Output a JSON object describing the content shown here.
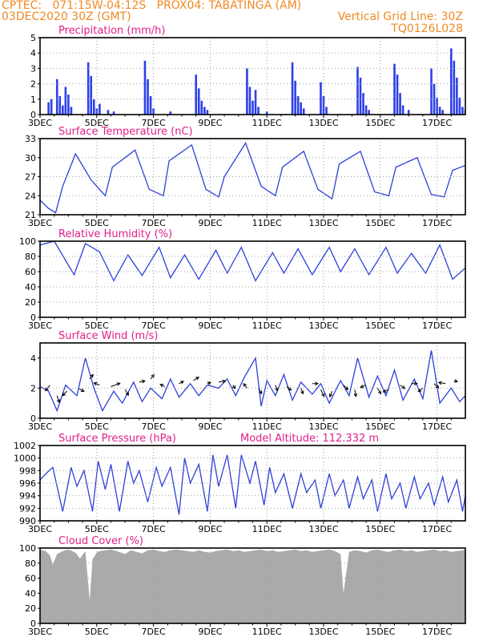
{
  "header": {
    "line1": "CPTEC:   071:15W-04:12S   PROX04: TABATINGA (AM)",
    "line2": "03DEC2020 30Z (GMT)",
    "vertical_grid": "Vertical Grid Line: 30Z",
    "code": "TQ0126L028"
  },
  "colors": {
    "header_text": "#f08a24",
    "panel_title": "#e0208a",
    "series_line": "#2c40d8",
    "precip_bar": "#2c40e8",
    "cloud_fill": "#aaaaaa",
    "grid": "#a0a0a0"
  },
  "x_tick_labels": [
    "3DEC",
    "5DEC",
    "7DEC",
    "9DEC",
    "11DEC",
    "13DEC",
    "15DEC",
    "17DEC"
  ],
  "chart_data": [
    {
      "type": "bar",
      "title": "Precipitation (mm/h)",
      "ylim": [
        0,
        5
      ],
      "yticks": [
        0,
        1,
        2,
        3,
        4,
        5
      ],
      "x_unit": "day of Dec 2020 (label days at 3,5,...,17)",
      "bars": [
        [
          3.3,
          0.8
        ],
        [
          3.4,
          1.0
        ],
        [
          3.6,
          2.3
        ],
        [
          3.7,
          1.2
        ],
        [
          3.8,
          0.6
        ],
        [
          3.9,
          1.8
        ],
        [
          4.0,
          1.3
        ],
        [
          4.1,
          0.5
        ],
        [
          4.7,
          3.4
        ],
        [
          4.8,
          2.5
        ],
        [
          4.9,
          1.0
        ],
        [
          5.0,
          0.4
        ],
        [
          5.1,
          0.7
        ],
        [
          5.4,
          0.3
        ],
        [
          5.6,
          0.2
        ],
        [
          6.7,
          3.5
        ],
        [
          6.8,
          2.3
        ],
        [
          6.9,
          1.2
        ],
        [
          7.0,
          0.4
        ],
        [
          7.6,
          0.2
        ],
        [
          8.5,
          2.6
        ],
        [
          8.6,
          1.7
        ],
        [
          8.7,
          0.9
        ],
        [
          8.8,
          0.5
        ],
        [
          8.9,
          0.3
        ],
        [
          10.3,
          3.0
        ],
        [
          10.4,
          1.8
        ],
        [
          10.5,
          0.9
        ],
        [
          10.6,
          1.6
        ],
        [
          10.7,
          0.5
        ],
        [
          11.0,
          0.2
        ],
        [
          11.9,
          3.4
        ],
        [
          12.0,
          2.2
        ],
        [
          12.1,
          1.2
        ],
        [
          12.2,
          0.8
        ],
        [
          12.3,
          0.4
        ],
        [
          12.9,
          2.1
        ],
        [
          13.0,
          1.2
        ],
        [
          13.1,
          0.5
        ],
        [
          14.2,
          3.1
        ],
        [
          14.3,
          2.4
        ],
        [
          14.4,
          1.4
        ],
        [
          14.5,
          0.6
        ],
        [
          14.6,
          0.3
        ],
        [
          15.5,
          3.3
        ],
        [
          15.6,
          2.6
        ],
        [
          15.7,
          1.4
        ],
        [
          15.8,
          0.6
        ],
        [
          16.0,
          0.3
        ],
        [
          16.8,
          3.0
        ],
        [
          16.9,
          2.0
        ],
        [
          17.0,
          1.1
        ],
        [
          17.1,
          0.5
        ],
        [
          17.2,
          0.3
        ],
        [
          17.5,
          4.3
        ],
        [
          17.6,
          3.5
        ],
        [
          17.7,
          2.4
        ],
        [
          17.8,
          1.1
        ],
        [
          17.9,
          0.5
        ],
        [
          18.0,
          0.3
        ],
        [
          18.1,
          0.2
        ]
      ]
    },
    {
      "type": "line",
      "title": "Surface Temperature (nC)",
      "ylim": [
        21,
        33
      ],
      "yticks": [
        21,
        24,
        27,
        30,
        33
      ],
      "x": [
        3.0,
        3.3,
        3.55,
        3.8,
        4.25,
        4.8,
        5.3,
        5.55,
        6.35,
        6.85,
        7.35,
        7.55,
        8.35,
        8.85,
        9.3,
        9.5,
        10.25,
        10.8,
        11.3,
        11.55,
        12.3,
        12.8,
        13.3,
        13.55,
        14.3,
        14.8,
        15.3,
        15.55,
        16.3,
        16.8,
        17.25,
        17.55,
        18.0
      ],
      "y": [
        23.3,
        22.0,
        21.3,
        25.5,
        30.6,
        26.5,
        24.0,
        28.5,
        31.2,
        25.0,
        24.0,
        29.5,
        32.0,
        25.0,
        23.8,
        27.0,
        32.3,
        25.5,
        24.0,
        28.5,
        31.0,
        25.0,
        23.5,
        29.0,
        31.0,
        24.6,
        24.0,
        28.5,
        30.0,
        24.2,
        23.8,
        28.0,
        28.8
      ]
    },
    {
      "type": "line",
      "title": "Relative Humidity (%)",
      "ylim": [
        0,
        100
      ],
      "yticks": [
        0,
        20,
        40,
        60,
        80,
        100
      ],
      "x": [
        3.0,
        3.5,
        4.2,
        4.6,
        5.1,
        5.6,
        6.1,
        6.6,
        7.2,
        7.6,
        8.1,
        8.6,
        9.2,
        9.6,
        10.1,
        10.6,
        11.2,
        11.6,
        12.1,
        12.6,
        13.2,
        13.6,
        14.1,
        14.6,
        15.2,
        15.6,
        16.1,
        16.6,
        17.1,
        17.55,
        18.0
      ],
      "y": [
        95,
        100,
        56,
        97,
        86,
        48,
        82,
        55,
        92,
        52,
        82,
        50,
        88,
        58,
        92,
        48,
        85,
        58,
        90,
        56,
        92,
        60,
        90,
        56,
        92,
        58,
        84,
        58,
        95,
        50,
        65
      ]
    },
    {
      "type": "line",
      "title": "Surface Wind (m/s)",
      "ylim": [
        0,
        5
      ],
      "yticks": [
        0,
        2,
        4
      ],
      "x": [
        3.0,
        3.3,
        3.6,
        3.9,
        4.3,
        4.6,
        4.9,
        5.2,
        5.6,
        5.9,
        6.3,
        6.6,
        6.9,
        7.3,
        7.6,
        7.9,
        8.3,
        8.6,
        8.9,
        9.3,
        9.6,
        9.9,
        10.2,
        10.6,
        10.8,
        11.0,
        11.3,
        11.6,
        11.9,
        12.2,
        12.6,
        12.9,
        13.2,
        13.6,
        13.9,
        14.2,
        14.6,
        14.9,
        15.2,
        15.5,
        15.8,
        16.2,
        16.5,
        16.8,
        17.1,
        17.5,
        17.8,
        18.0
      ],
      "y": [
        2.1,
        1.8,
        0.5,
        2.2,
        1.5,
        4.0,
        2.0,
        0.5,
        1.8,
        1.0,
        2.4,
        1.1,
        2.0,
        1.3,
        2.6,
        1.4,
        2.3,
        1.5,
        2.2,
        2.0,
        2.6,
        1.5,
        2.7,
        4.0,
        0.8,
        2.5,
        1.5,
        2.9,
        1.2,
        2.4,
        1.6,
        2.3,
        1.0,
        2.5,
        1.5,
        4.0,
        1.4,
        2.8,
        1.5,
        3.2,
        1.2,
        2.6,
        1.3,
        4.5,
        1.0,
        2.0,
        1.1,
        1.5
      ],
      "arrows": [
        [
          3.35,
          2.2,
          -0.4,
          -0.5
        ],
        [
          3.6,
          1.5,
          0.2,
          -0.6
        ],
        [
          3.95,
          1.8,
          -0.4,
          -0.4
        ],
        [
          4.35,
          2.0,
          0.5,
          -0.3
        ],
        [
          4.75,
          2.6,
          0.3,
          0.4
        ],
        [
          5.1,
          2.2,
          -0.5,
          0.2
        ],
        [
          5.5,
          2.1,
          0.8,
          0.3
        ],
        [
          6.0,
          1.9,
          0.3,
          -0.5
        ],
        [
          6.5,
          2.4,
          0.5,
          0.1
        ],
        [
          6.9,
          2.6,
          0.3,
          0.4
        ],
        [
          7.4,
          2.1,
          -0.4,
          0.2
        ],
        [
          7.9,
          2.3,
          0.4,
          0.2
        ],
        [
          8.4,
          2.5,
          0.5,
          0.3
        ],
        [
          8.9,
          2.3,
          0.3,
          0.1
        ],
        [
          9.3,
          2.4,
          0.6,
          0.1
        ],
        [
          9.8,
          2.2,
          0.2,
          -0.3
        ],
        [
          10.3,
          2.0,
          -0.3,
          0.4
        ],
        [
          10.7,
          2.0,
          0.3,
          -0.5
        ],
        [
          11.3,
          2.2,
          0.2,
          -0.5
        ],
        [
          11.7,
          2.1,
          0.4,
          -0.3
        ],
        [
          12.2,
          2.0,
          0.2,
          -0.5
        ],
        [
          12.6,
          2.3,
          0.5,
          0.0
        ],
        [
          12.9,
          1.9,
          0.3,
          -0.6
        ],
        [
          13.3,
          1.8,
          -0.2,
          -0.5
        ],
        [
          13.7,
          2.2,
          0.4,
          -0.4
        ],
        [
          14.1,
          1.9,
          0.1,
          -0.6
        ],
        [
          14.5,
          2.2,
          -0.5,
          -0.2
        ],
        [
          14.9,
          2.0,
          0.3,
          -0.5
        ],
        [
          15.3,
          1.9,
          -0.5,
          -0.2
        ],
        [
          15.7,
          2.2,
          0.4,
          -0.3
        ],
        [
          16.1,
          2.3,
          0.5,
          0.0
        ],
        [
          16.5,
          2.0,
          -0.4,
          -0.3
        ],
        [
          16.9,
          2.3,
          0.4,
          -0.4
        ],
        [
          17.3,
          2.3,
          -0.6,
          0.1
        ],
        [
          17.6,
          2.5,
          0.3,
          -0.1
        ]
      ]
    },
    {
      "type": "line",
      "title": "Surface Pressure (hPa)",
      "annotation": "Model Altitude: 112.332 m",
      "ylim": [
        990,
        1002
      ],
      "yticks": [
        990,
        992,
        994,
        996,
        998,
        1000,
        1002
      ],
      "x": [
        3.0,
        3.2,
        3.45,
        3.8,
        4.1,
        4.3,
        4.55,
        4.85,
        5.05,
        5.3,
        5.5,
        5.8,
        6.1,
        6.3,
        6.5,
        6.8,
        7.1,
        7.3,
        7.6,
        7.9,
        8.1,
        8.3,
        8.6,
        8.9,
        9.1,
        9.3,
        9.6,
        9.9,
        10.1,
        10.4,
        10.6,
        10.9,
        11.1,
        11.3,
        11.6,
        11.9,
        12.2,
        12.4,
        12.7,
        12.9,
        13.2,
        13.4,
        13.7,
        13.9,
        14.2,
        14.4,
        14.7,
        14.9,
        15.2,
        15.4,
        15.7,
        15.9,
        16.2,
        16.4,
        16.7,
        16.9,
        17.2,
        17.4,
        17.7,
        17.9,
        18.0
      ],
      "y": [
        996.5,
        997.5,
        998.5,
        991.5,
        998.5,
        995.5,
        998.0,
        991.5,
        999.5,
        995.0,
        999.0,
        991.5,
        999.5,
        996.0,
        998.0,
        993.0,
        998.5,
        995.5,
        998.5,
        991.0,
        1000.0,
        996.0,
        999.0,
        991.5,
        1000.5,
        995.5,
        1000.5,
        992.0,
        1000.5,
        996.0,
        999.5,
        992.5,
        998.5,
        994.5,
        997.5,
        992.0,
        997.5,
        994.5,
        996.5,
        992.0,
        997.5,
        994.0,
        996.5,
        992.0,
        997.0,
        993.5,
        996.5,
        991.5,
        997.5,
        993.5,
        996.0,
        992.0,
        997.0,
        993.5,
        996.0,
        992.5,
        997.0,
        993.0,
        996.5,
        991.5,
        994.0
      ]
    },
    {
      "type": "area",
      "title": "Cloud Cover (%)",
      "ylim": [
        0,
        100
      ],
      "yticks": [
        0,
        20,
        40,
        60,
        80,
        100
      ],
      "x": [
        3.0,
        3.2,
        3.35,
        3.45,
        3.6,
        3.8,
        4.0,
        4.2,
        4.3,
        4.4,
        4.6,
        4.75,
        4.85,
        5.0,
        5.1,
        5.3,
        5.5,
        5.7,
        6.0,
        6.2,
        6.4,
        6.6,
        6.8,
        7.0,
        7.2,
        7.4,
        7.6,
        7.8,
        8.0,
        8.2,
        8.4,
        8.6,
        8.8,
        9.0,
        9.2,
        9.4,
        9.6,
        9.8,
        10.0,
        10.2,
        10.4,
        10.6,
        10.8,
        11.0,
        11.2,
        11.4,
        11.6,
        11.8,
        12.0,
        12.2,
        12.4,
        12.6,
        12.8,
        13.0,
        13.2,
        13.4,
        13.6,
        13.7,
        13.9,
        14.1,
        14.3,
        14.5,
        14.7,
        14.9,
        15.1,
        15.3,
        15.5,
        15.7,
        15.9,
        16.1,
        16.3,
        16.5,
        16.7,
        16.9,
        17.1,
        17.3,
        17.5,
        17.7,
        17.9,
        18.0
      ],
      "y": [
        98,
        96,
        90,
        78,
        92,
        96,
        98,
        95,
        92,
        86,
        96,
        30,
        85,
        94,
        96,
        97,
        98,
        96,
        92,
        97,
        95,
        93,
        97,
        98,
        96,
        95,
        97,
        98,
        97,
        96,
        95,
        97,
        95,
        94,
        96,
        97,
        98,
        96,
        97,
        95,
        96,
        97,
        98,
        96,
        97,
        95,
        96,
        97,
        98,
        96,
        97,
        95,
        96,
        97,
        98,
        96,
        92,
        40,
        95,
        97,
        96,
        94,
        97,
        98,
        96,
        95,
        97,
        98,
        96,
        97,
        95,
        96,
        97,
        98,
        96,
        97,
        95,
        96,
        97,
        98
      ]
    }
  ]
}
